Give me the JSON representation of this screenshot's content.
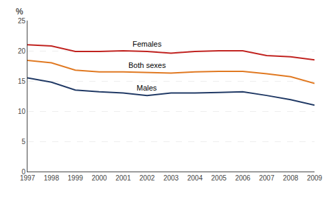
{
  "chart_data": {
    "type": "line",
    "ylabel": "%",
    "x": [
      1997,
      1998,
      1999,
      2000,
      2001,
      2002,
      2003,
      2004,
      2005,
      2006,
      2007,
      2008,
      2009
    ],
    "series": [
      {
        "name": "Females",
        "color": "#c0211e",
        "values": [
          21.0,
          20.8,
          19.9,
          19.9,
          20.0,
          19.9,
          19.6,
          19.9,
          20.0,
          20.0,
          19.2,
          19.0,
          18.5
        ]
      },
      {
        "name": "Both sexes",
        "color": "#e07820",
        "values": [
          18.4,
          18.0,
          16.8,
          16.5,
          16.5,
          16.4,
          16.3,
          16.5,
          16.6,
          16.6,
          16.2,
          15.7,
          14.6
        ]
      },
      {
        "name": "Males",
        "color": "#1f3864",
        "values": [
          15.5,
          14.8,
          13.5,
          13.2,
          13.0,
          12.6,
          13.0,
          13.0,
          13.1,
          13.2,
          12.6,
          11.9,
          11.0
        ]
      }
    ],
    "xlim": [
      1997,
      2009
    ],
    "xticks": [
      1997,
      1998,
      1999,
      2000,
      2001,
      2002,
      2003,
      2004,
      2005,
      2006,
      2007,
      2008,
      2009
    ],
    "ylim": [
      0,
      25
    ],
    "yticks": [
      0,
      5,
      10,
      15,
      20,
      25
    ],
    "grid": true
  }
}
